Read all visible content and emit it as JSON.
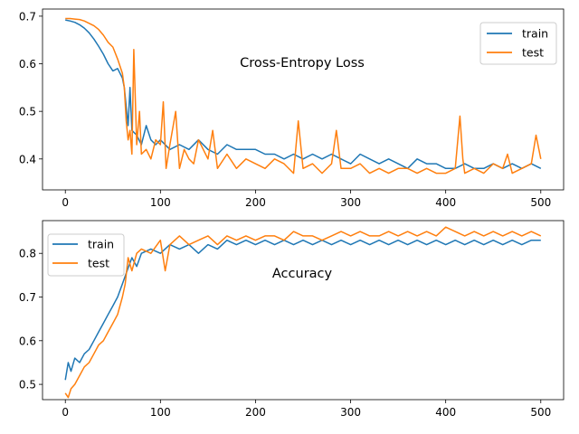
{
  "colors": {
    "train": "#1f77b4",
    "test": "#ff7f0e",
    "axes": "#000000",
    "background": "#ffffff"
  },
  "chart_data": [
    {
      "type": "line",
      "title": "Cross-Entropy Loss",
      "xlabel": "",
      "ylabel": "",
      "xlim": [
        -24,
        524
      ],
      "ylim": [
        0.335,
        0.715
      ],
      "xticks": [
        0,
        100,
        200,
        300,
        400,
        500
      ],
      "yticks": [
        0.4,
        0.5,
        0.6,
        0.7
      ],
      "xtick_labels": [
        "0",
        "100",
        "200",
        "300",
        "400",
        "500"
      ],
      "ytick_labels": [
        "0.4",
        "0.5",
        "0.6",
        "0.7"
      ],
      "grid": false,
      "legend": {
        "placement": "upper-right",
        "entries": [
          "train",
          "test"
        ]
      },
      "series": [
        {
          "name": "train",
          "color": "#1f77b4",
          "x": [
            0,
            5,
            10,
            15,
            20,
            25,
            30,
            35,
            40,
            45,
            50,
            55,
            60,
            62,
            64,
            66,
            68,
            70,
            75,
            80,
            85,
            90,
            95,
            100,
            110,
            120,
            130,
            140,
            150,
            160,
            170,
            180,
            190,
            200,
            210,
            220,
            230,
            240,
            250,
            260,
            270,
            280,
            290,
            300,
            310,
            320,
            330,
            340,
            350,
            360,
            370,
            380,
            390,
            400,
            410,
            420,
            430,
            440,
            450,
            460,
            470,
            480,
            490,
            500
          ],
          "y": [
            0.692,
            0.69,
            0.687,
            0.682,
            0.675,
            0.665,
            0.652,
            0.637,
            0.62,
            0.6,
            0.585,
            0.59,
            0.57,
            0.55,
            0.51,
            0.47,
            0.55,
            0.46,
            0.45,
            0.43,
            0.47,
            0.44,
            0.43,
            0.44,
            0.42,
            0.43,
            0.42,
            0.44,
            0.42,
            0.41,
            0.43,
            0.42,
            0.42,
            0.42,
            0.41,
            0.41,
            0.4,
            0.41,
            0.4,
            0.41,
            0.4,
            0.41,
            0.4,
            0.39,
            0.41,
            0.4,
            0.39,
            0.4,
            0.39,
            0.38,
            0.4,
            0.39,
            0.39,
            0.38,
            0.38,
            0.39,
            0.38,
            0.38,
            0.39,
            0.38,
            0.39,
            0.38,
            0.39,
            0.38
          ]
        },
        {
          "name": "test",
          "color": "#ff7f0e",
          "x": [
            0,
            5,
            10,
            15,
            20,
            25,
            30,
            35,
            40,
            45,
            50,
            55,
            60,
            62,
            64,
            66,
            68,
            70,
            72,
            75,
            78,
            80,
            85,
            90,
            95,
            100,
            103,
            106,
            110,
            116,
            120,
            125,
            130,
            135,
            140,
            150,
            155,
            160,
            170,
            180,
            190,
            200,
            210,
            220,
            230,
            240,
            245,
            250,
            260,
            270,
            280,
            285,
            290,
            300,
            310,
            320,
            330,
            340,
            350,
            360,
            370,
            380,
            390,
            400,
            410,
            415,
            418,
            420,
            430,
            440,
            450,
            460,
            465,
            470,
            480,
            490,
            495,
            500
          ],
          "y": [
            0.695,
            0.695,
            0.694,
            0.693,
            0.69,
            0.685,
            0.68,
            0.672,
            0.66,
            0.645,
            0.635,
            0.61,
            0.58,
            0.55,
            0.48,
            0.44,
            0.46,
            0.41,
            0.63,
            0.43,
            0.5,
            0.41,
            0.42,
            0.4,
            0.44,
            0.43,
            0.52,
            0.38,
            0.43,
            0.5,
            0.38,
            0.42,
            0.4,
            0.39,
            0.44,
            0.4,
            0.46,
            0.38,
            0.41,
            0.38,
            0.4,
            0.39,
            0.38,
            0.4,
            0.39,
            0.37,
            0.48,
            0.38,
            0.39,
            0.37,
            0.39,
            0.46,
            0.38,
            0.38,
            0.39,
            0.37,
            0.38,
            0.37,
            0.38,
            0.38,
            0.37,
            0.38,
            0.37,
            0.37,
            0.38,
            0.49,
            0.4,
            0.37,
            0.38,
            0.37,
            0.39,
            0.38,
            0.41,
            0.37,
            0.38,
            0.39,
            0.45,
            0.4
          ]
        }
      ]
    },
    {
      "type": "line",
      "title": "Accuracy",
      "xlabel": "",
      "ylabel": "",
      "xlim": [
        -24,
        524
      ],
      "ylim": [
        0.465,
        0.875
      ],
      "xticks": [
        0,
        100,
        200,
        300,
        400,
        500
      ],
      "yticks": [
        0.5,
        0.6,
        0.7,
        0.8
      ],
      "xtick_labels": [
        "0",
        "100",
        "200",
        "300",
        "400",
        "500"
      ],
      "ytick_labels": [
        "0.5",
        "0.6",
        "0.7",
        "0.8"
      ],
      "grid": false,
      "legend": {
        "placement": "upper-left",
        "entries": [
          "train",
          "test"
        ]
      },
      "series": [
        {
          "name": "train",
          "color": "#1f77b4",
          "x": [
            0,
            3,
            6,
            10,
            15,
            20,
            25,
            30,
            35,
            40,
            45,
            50,
            55,
            60,
            65,
            70,
            75,
            80,
            90,
            100,
            110,
            120,
            130,
            140,
            150,
            160,
            170,
            180,
            190,
            200,
            210,
            220,
            230,
            240,
            250,
            260,
            270,
            280,
            290,
            300,
            310,
            320,
            330,
            340,
            350,
            360,
            370,
            380,
            390,
            400,
            410,
            420,
            430,
            440,
            450,
            460,
            470,
            480,
            490,
            500
          ],
          "y": [
            0.51,
            0.55,
            0.53,
            0.56,
            0.55,
            0.57,
            0.58,
            0.6,
            0.62,
            0.64,
            0.66,
            0.68,
            0.7,
            0.73,
            0.76,
            0.79,
            0.77,
            0.8,
            0.81,
            0.8,
            0.82,
            0.81,
            0.82,
            0.8,
            0.82,
            0.81,
            0.83,
            0.82,
            0.83,
            0.82,
            0.83,
            0.82,
            0.83,
            0.82,
            0.83,
            0.82,
            0.83,
            0.82,
            0.83,
            0.82,
            0.83,
            0.82,
            0.83,
            0.82,
            0.83,
            0.82,
            0.83,
            0.82,
            0.83,
            0.82,
            0.83,
            0.82,
            0.83,
            0.82,
            0.83,
            0.82,
            0.83,
            0.82,
            0.83,
            0.83
          ]
        },
        {
          "name": "test",
          "color": "#ff7f0e",
          "x": [
            0,
            3,
            6,
            10,
            15,
            20,
            25,
            30,
            35,
            40,
            45,
            50,
            55,
            60,
            63,
            66,
            70,
            75,
            80,
            90,
            100,
            105,
            110,
            120,
            130,
            140,
            150,
            160,
            170,
            180,
            190,
            200,
            210,
            220,
            230,
            240,
            250,
            260,
            270,
            280,
            290,
            300,
            310,
            320,
            330,
            340,
            350,
            360,
            370,
            380,
            390,
            400,
            410,
            420,
            430,
            440,
            450,
            460,
            470,
            480,
            490,
            500
          ],
          "y": [
            0.48,
            0.47,
            0.49,
            0.5,
            0.52,
            0.54,
            0.55,
            0.57,
            0.59,
            0.6,
            0.62,
            0.64,
            0.66,
            0.7,
            0.73,
            0.79,
            0.76,
            0.8,
            0.81,
            0.8,
            0.83,
            0.76,
            0.82,
            0.84,
            0.82,
            0.83,
            0.84,
            0.82,
            0.84,
            0.83,
            0.84,
            0.83,
            0.84,
            0.84,
            0.83,
            0.85,
            0.84,
            0.84,
            0.83,
            0.84,
            0.85,
            0.84,
            0.85,
            0.84,
            0.84,
            0.85,
            0.84,
            0.85,
            0.84,
            0.85,
            0.84,
            0.86,
            0.85,
            0.84,
            0.85,
            0.84,
            0.85,
            0.84,
            0.85,
            0.84,
            0.85,
            0.84
          ]
        }
      ]
    }
  ]
}
